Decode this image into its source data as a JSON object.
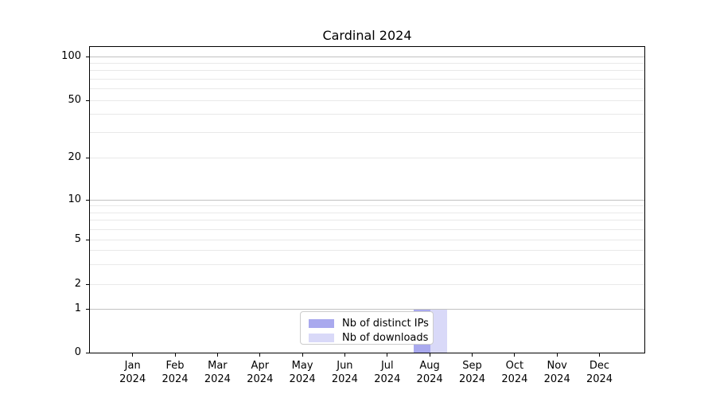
{
  "chart_data": {
    "type": "bar",
    "title": "Cardinal 2024",
    "categories": [
      "Jan 2024",
      "Feb 2024",
      "Mar 2024",
      "Apr 2024",
      "May 2024",
      "Jun 2024",
      "Jul 2024",
      "Aug 2024",
      "Sep 2024",
      "Oct 2024",
      "Nov 2024",
      "Dec 2024"
    ],
    "x_tick_labels": [
      {
        "month": "Jan",
        "year": "2024"
      },
      {
        "month": "Feb",
        "year": "2024"
      },
      {
        "month": "Mar",
        "year": "2024"
      },
      {
        "month": "Apr",
        "year": "2024"
      },
      {
        "month": "May",
        "year": "2024"
      },
      {
        "month": "Jun",
        "year": "2024"
      },
      {
        "month": "Jul",
        "year": "2024"
      },
      {
        "month": "Aug",
        "year": "2024"
      },
      {
        "month": "Sep",
        "year": "2024"
      },
      {
        "month": "Oct",
        "year": "2024"
      },
      {
        "month": "Nov",
        "year": "2024"
      },
      {
        "month": "Dec",
        "year": "2024"
      }
    ],
    "series": [
      {
        "name": "Nb of distinct IPs",
        "values": [
          0,
          0,
          0,
          0,
          0,
          0,
          0,
          1,
          0,
          0,
          0,
          0
        ]
      },
      {
        "name": "Nb of downloads",
        "values": [
          0,
          0,
          0,
          0,
          0,
          0,
          0,
          1,
          0,
          0,
          0,
          0
        ]
      }
    ],
    "y_axis": {
      "scale": "symlog",
      "tick_labels": [
        0,
        1,
        2,
        5,
        10,
        20,
        50,
        100
      ],
      "decade_gridlines": [
        1,
        10,
        100
      ],
      "minor_gridlines": [
        2,
        3,
        4,
        5,
        6,
        7,
        8,
        9,
        20,
        30,
        40,
        50,
        60,
        70,
        80,
        90
      ],
      "ylim": [
        0,
        115
      ]
    },
    "grid": "horizontal major+minor, on",
    "legend_position": "lower center"
  },
  "legend": {
    "items": [
      {
        "label": "Nb of distinct IPs"
      },
      {
        "label": "Nb of downloads"
      }
    ]
  },
  "colors": {
    "distinct_ips": "#a9a9ee",
    "downloads": "#d9d9f8",
    "grid_decade": "#c2c2c2",
    "grid_minor": "#e9e9e9",
    "axis": "#000000",
    "background": "#ffffff",
    "legend_border": "#cccccc",
    "text": "#000000"
  }
}
